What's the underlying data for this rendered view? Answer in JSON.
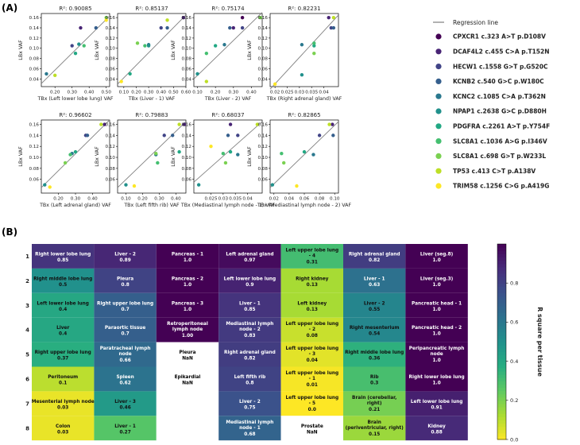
{
  "panel_labels": {
    "a": "(A)",
    "b": "(B)"
  },
  "legend": {
    "regression_label": "Regression line",
    "entries": [
      {
        "label": "CPXCR1 c.323 A>T p.D108V",
        "color": "#440154"
      },
      {
        "label": "DCAF4L2 c.455 C>A p.T152N",
        "color": "#482475"
      },
      {
        "label": "HECW1 c.1558 G>T p.G520C",
        "color": "#414487"
      },
      {
        "label": "KCNB2 c.540 G>C p.W180C",
        "color": "#355f8d"
      },
      {
        "label": "KCNC2 c.1085 C>A p.T362N",
        "color": "#2a788e"
      },
      {
        "label": "NPAP1 c.2638 G>C p.D880H",
        "color": "#21918c"
      },
      {
        "label": "PDGFRA c.2261 A>T p.Y754F",
        "color": "#22a884"
      },
      {
        "label": "SLC8A1 c.1036 A>G p.I346V",
        "color": "#44bf70"
      },
      {
        "label": "SLC8A1 c.698 G>T p.W233L",
        "color": "#7ad151"
      },
      {
        "label": "TP53 c.413 C>T p.A138V",
        "color": "#bddf26"
      },
      {
        "label": "TRIM58 c.1256 C>G p.A419G",
        "color": "#fde725"
      }
    ]
  },
  "chart_data": [
    {
      "type": "scatter",
      "title": "R²: 0.90085",
      "xlabel": "TBx (Left lower lobe lung) VAF",
      "ylabel": "LBx VAF",
      "xlim": [
        0.12,
        0.52
      ],
      "ylim": [
        0.025,
        0.168
      ],
      "xticks": [
        0.2,
        0.3,
        0.4,
        0.5
      ],
      "yticks": [
        0.04,
        0.06,
        0.08,
        0.1,
        0.12,
        0.14,
        0.16
      ],
      "regression": [
        [
          0.12,
          0.031
        ],
        [
          0.52,
          0.163
        ]
      ],
      "points": [
        {
          "x": 0.35,
          "y": 0.14,
          "c": 1
        },
        {
          "x": 0.44,
          "y": 0.14,
          "c": 3
        },
        {
          "x": 0.3,
          "y": 0.105,
          "c": 2
        },
        {
          "x": 0.34,
          "y": 0.108,
          "c": 5
        },
        {
          "x": 0.15,
          "y": 0.05,
          "c": 4
        },
        {
          "x": 0.32,
          "y": 0.09,
          "c": 6
        },
        {
          "x": 0.37,
          "y": 0.105,
          "c": 7
        },
        {
          "x": 0.5,
          "y": 0.16,
          "c": 8
        },
        {
          "x": 0.2,
          "y": 0.047,
          "c": 9
        },
        {
          "x": 0.5,
          "y": 0.155,
          "c": 10
        }
      ]
    },
    {
      "type": "scatter",
      "title": "R²: 0.85137",
      "xlabel": "TBx (Liver - 1) VAF",
      "ylabel": "LBx VAF",
      "xlim": [
        0.05,
        0.6
      ],
      "ylim": [
        0.025,
        0.168
      ],
      "xticks": [
        0.1,
        0.2,
        0.3,
        0.4,
        0.5,
        0.6
      ],
      "yticks": [
        0.04,
        0.06,
        0.08,
        0.1,
        0.12,
        0.14,
        0.16
      ],
      "regression": [
        [
          0.05,
          0.03
        ],
        [
          0.6,
          0.165
        ]
      ],
      "points": [
        {
          "x": 0.58,
          "y": 0.16,
          "c": 1
        },
        {
          "x": 0.4,
          "y": 0.14,
          "c": 2
        },
        {
          "x": 0.45,
          "y": 0.14,
          "c": 3
        },
        {
          "x": 0.3,
          "y": 0.107,
          "c": 4
        },
        {
          "x": 0.3,
          "y": 0.105,
          "c": 5
        },
        {
          "x": 0.15,
          "y": 0.05,
          "c": 6
        },
        {
          "x": 0.27,
          "y": 0.105,
          "c": 7
        },
        {
          "x": 0.21,
          "y": 0.11,
          "c": 8
        },
        {
          "x": 0.45,
          "y": 0.155,
          "c": 9
        },
        {
          "x": 0.08,
          "y": 0.035,
          "c": 10
        }
      ]
    },
    {
      "type": "scatter",
      "title": "R²: 0.75174",
      "xlabel": "TBx (Liver - 2) VAF",
      "ylabel": "LBx VAF",
      "xlim": [
        0.08,
        0.46
      ],
      "ylim": [
        0.025,
        0.168
      ],
      "xticks": [
        0.1,
        0.2,
        0.3,
        0.4
      ],
      "yticks": [
        0.04,
        0.06,
        0.08,
        0.1,
        0.12,
        0.14,
        0.16
      ],
      "regression": [
        [
          0.08,
          0.04
        ],
        [
          0.46,
          0.17
        ]
      ],
      "points": [
        {
          "x": 0.35,
          "y": 0.16,
          "c": 0
        },
        {
          "x": 0.3,
          "y": 0.14,
          "c": 1
        },
        {
          "x": 0.35,
          "y": 0.14,
          "c": 2
        },
        {
          "x": 0.28,
          "y": 0.14,
          "c": 3
        },
        {
          "x": 0.25,
          "y": 0.107,
          "c": 4
        },
        {
          "x": 0.1,
          "y": 0.05,
          "c": 5
        },
        {
          "x": 0.2,
          "y": 0.105,
          "c": 6
        },
        {
          "x": 0.15,
          "y": 0.09,
          "c": 7
        },
        {
          "x": 0.45,
          "y": 0.16,
          "c": 8
        },
        {
          "x": 0.15,
          "y": 0.035,
          "c": 9
        }
      ]
    },
    {
      "type": "scatter",
      "title": "R²: 0.82231",
      "xlabel": "TBx (Right adrenal gland) VAF",
      "ylabel": "LBx VAF",
      "xlim": [
        0.018,
        0.046
      ],
      "ylim": [
        0.025,
        0.168
      ],
      "xticks": [
        0.02,
        0.025,
        0.03,
        0.035,
        0.04
      ],
      "yticks": [
        0.04,
        0.06,
        0.08,
        0.1,
        0.12,
        0.14,
        0.16
      ],
      "regression": [
        [
          0.018,
          0.02
        ],
        [
          0.046,
          0.165
        ]
      ],
      "points": [
        {
          "x": 0.042,
          "y": 0.16,
          "c": 1
        },
        {
          "x": 0.043,
          "y": 0.14,
          "c": 2
        },
        {
          "x": 0.044,
          "y": 0.14,
          "c": 3
        },
        {
          "x": 0.031,
          "y": 0.107,
          "c": 4
        },
        {
          "x": 0.031,
          "y": 0.048,
          "c": 5
        },
        {
          "x": 0.036,
          "y": 0.105,
          "c": 6
        },
        {
          "x": 0.036,
          "y": 0.11,
          "c": 7
        },
        {
          "x": 0.036,
          "y": 0.09,
          "c": 8
        },
        {
          "x": 0.044,
          "y": 0.16,
          "c": 9
        },
        {
          "x": 0.02,
          "y": 0.03,
          "c": 10
        }
      ]
    },
    {
      "type": "scatter",
      "title": "R²: 0.96602",
      "xlabel": "TBx (Left adrenal gland) VAF",
      "ylabel": "LBx VAF",
      "xlim": [
        0.1,
        0.5
      ],
      "ylim": [
        0.035,
        0.168
      ],
      "xticks": [
        0.2,
        0.3,
        0.4
      ],
      "yticks": [
        0.06,
        0.08,
        0.1,
        0.12,
        0.14,
        0.16
      ],
      "regression": [
        [
          0.1,
          0.045
        ],
        [
          0.5,
          0.168
        ]
      ],
      "points": [
        {
          "x": 0.47,
          "y": 0.16,
          "c": 1
        },
        {
          "x": 0.36,
          "y": 0.14,
          "c": 2
        },
        {
          "x": 0.37,
          "y": 0.14,
          "c": 3
        },
        {
          "x": 0.28,
          "y": 0.107,
          "c": 4
        },
        {
          "x": 0.12,
          "y": 0.05,
          "c": 5
        },
        {
          "x": 0.3,
          "y": 0.11,
          "c": 6
        },
        {
          "x": 0.27,
          "y": 0.105,
          "c": 7
        },
        {
          "x": 0.24,
          "y": 0.09,
          "c": 8
        },
        {
          "x": 0.45,
          "y": 0.16,
          "c": 9
        },
        {
          "x": 0.15,
          "y": 0.046,
          "c": 10
        }
      ]
    },
    {
      "type": "scatter",
      "title": "R²: 0.79883",
      "xlabel": "TBx (Left fifth rib) VAF",
      "ylabel": "LBx VAF",
      "xlim": [
        0.05,
        0.46
      ],
      "ylim": [
        0.035,
        0.168
      ],
      "xticks": [
        0.1,
        0.2,
        0.3,
        0.4
      ],
      "yticks": [
        0.06,
        0.08,
        0.1,
        0.12,
        0.14,
        0.16
      ],
      "regression": [
        [
          0.05,
          0.045
        ],
        [
          0.46,
          0.165
        ]
      ],
      "points": [
        {
          "x": 0.45,
          "y": 0.16,
          "c": 1
        },
        {
          "x": 0.33,
          "y": 0.14,
          "c": 2
        },
        {
          "x": 0.38,
          "y": 0.14,
          "c": 3
        },
        {
          "x": 0.28,
          "y": 0.105,
          "c": 4
        },
        {
          "x": 0.1,
          "y": 0.05,
          "c": 5
        },
        {
          "x": 0.42,
          "y": 0.11,
          "c": 6
        },
        {
          "x": 0.29,
          "y": 0.09,
          "c": 7
        },
        {
          "x": 0.28,
          "y": 0.107,
          "c": 8
        },
        {
          "x": 0.42,
          "y": 0.16,
          "c": 9
        },
        {
          "x": 0.15,
          "y": 0.048,
          "c": 10
        }
      ]
    },
    {
      "type": "scatter",
      "title": "R²: 0.68037",
      "xlabel": "TBx (Mediastinal lymph node - 1) VAF",
      "ylabel": "LBx VAF",
      "xlim": [
        0.018,
        0.046
      ],
      "ylim": [
        0.035,
        0.168
      ],
      "xticks": [
        0.025,
        0.03,
        0.035,
        0.04
      ],
      "yticks": [
        0.06,
        0.08,
        0.1,
        0.12,
        0.14,
        0.16
      ],
      "regression": [
        [
          0.018,
          0.055
        ],
        [
          0.046,
          0.165
        ]
      ],
      "points": [
        {
          "x": 0.033,
          "y": 0.16,
          "c": 1
        },
        {
          "x": 0.036,
          "y": 0.14,
          "c": 2
        },
        {
          "x": 0.032,
          "y": 0.14,
          "c": 3
        },
        {
          "x": 0.036,
          "y": 0.105,
          "c": 4
        },
        {
          "x": 0.02,
          "y": 0.05,
          "c": 5
        },
        {
          "x": 0.033,
          "y": 0.11,
          "c": 6
        },
        {
          "x": 0.03,
          "y": 0.107,
          "c": 7
        },
        {
          "x": 0.031,
          "y": 0.09,
          "c": 8
        },
        {
          "x": 0.044,
          "y": 0.16,
          "c": 9
        },
        {
          "x": 0.025,
          "y": 0.12,
          "c": 10
        }
      ]
    },
    {
      "type": "scatter",
      "title": "R²: 0.82865",
      "xlabel": "TBx (Mediastinal lymph node - 2) VAF",
      "ylabel": "LBx VAF",
      "xlim": [
        0.015,
        0.105
      ],
      "ylim": [
        0.035,
        0.168
      ],
      "xticks": [
        0.02,
        0.04,
        0.06,
        0.08,
        0.1
      ],
      "yticks": [
        0.06,
        0.08,
        0.1,
        0.12,
        0.14,
        0.16
      ],
      "regression": [
        [
          0.015,
          0.045
        ],
        [
          0.105,
          0.165
        ]
      ],
      "points": [
        {
          "x": 0.097,
          "y": 0.16,
          "c": 1
        },
        {
          "x": 0.08,
          "y": 0.14,
          "c": 2
        },
        {
          "x": 0.098,
          "y": 0.14,
          "c": 3
        },
        {
          "x": 0.072,
          "y": 0.105,
          "c": 4
        },
        {
          "x": 0.018,
          "y": 0.05,
          "c": 5
        },
        {
          "x": 0.06,
          "y": 0.11,
          "c": 6
        },
        {
          "x": 0.03,
          "y": 0.107,
          "c": 7
        },
        {
          "x": 0.033,
          "y": 0.09,
          "c": 8
        },
        {
          "x": 0.093,
          "y": 0.16,
          "c": 9
        },
        {
          "x": 0.05,
          "y": 0.048,
          "c": 10
        }
      ]
    },
    {
      "type": "heatmap",
      "row_labels": [
        "1",
        "2",
        "3",
        "4",
        "5",
        "6",
        "7",
        "8"
      ],
      "colorbar_label": "R square per tissue",
      "colorbar_ticks": [
        0.0,
        0.2,
        0.4,
        0.6,
        0.8
      ],
      "vmin": 0.0,
      "vmax": 1.0,
      "columns": [
        [
          {
            "name": "Right lower lobe lung",
            "value": "0.85",
            "v": 0.85
          },
          {
            "name": "Right middle lobe lung",
            "value": "0.5",
            "v": 0.5
          },
          {
            "name": "Left lower lobe lung",
            "value": "0.4",
            "v": 0.4
          },
          {
            "name": "Liver",
            "value": "0.4",
            "v": 0.4
          },
          {
            "name": "Right upper lobe lung",
            "value": "0.37",
            "v": 0.37
          },
          {
            "name": "Peritoneum",
            "value": "0.1",
            "v": 0.1
          },
          {
            "name": "Mesenterial lymph node",
            "value": "0.03",
            "v": 0.03
          },
          {
            "name": "Colon",
            "value": "0.03",
            "v": 0.03
          }
        ],
        [
          {
            "name": "Liver - 2",
            "value": "0.89",
            "v": 0.89
          },
          {
            "name": "Pleura",
            "value": "0.8",
            "v": 0.8
          },
          {
            "name": "Right upper lobe lung",
            "value": "0.7",
            "v": 0.7
          },
          {
            "name": "Paraortic tissue",
            "value": "0.7",
            "v": 0.7
          },
          {
            "name": "Paratracheal lymph node",
            "value": "0.66",
            "v": 0.66
          },
          {
            "name": "Spleen",
            "value": "0.62",
            "v": 0.62
          },
          {
            "name": "Liver - 3",
            "value": "0.46",
            "v": 0.46
          },
          {
            "name": "Liver - 1",
            "value": "0.27",
            "v": 0.27
          }
        ],
        [
          {
            "name": "Pancreas - 1",
            "value": "1.0",
            "v": 1.0
          },
          {
            "name": "Pancreas - 2",
            "value": "1.0",
            "v": 1.0
          },
          {
            "name": "Pancreas - 3",
            "value": "1.0",
            "v": 1.0
          },
          {
            "name": "Retroperitoneal lymph node",
            "value": "1.00",
            "v": 1.0
          },
          {
            "name": "Pleura",
            "value": "NaN",
            "v": null
          },
          {
            "name": "Epikardial",
            "value": "NaN",
            "v": null
          },
          {
            "name": "",
            "value": "",
            "v": null
          },
          {
            "name": "",
            "value": "",
            "v": null
          }
        ],
        [
          {
            "name": "Left adrenal gland",
            "value": "0.97",
            "v": 0.97
          },
          {
            "name": "Left lower lobe lung",
            "value": "0.9",
            "v": 0.9
          },
          {
            "name": "Liver - 1",
            "value": "0.85",
            "v": 0.85
          },
          {
            "name": "Mediastinal lymph node - 2",
            "value": "0.83",
            "v": 0.83
          },
          {
            "name": "Right adrenal gland",
            "value": "0.82",
            "v": 0.82
          },
          {
            "name": "Left fifth rib",
            "value": "0.8",
            "v": 0.8
          },
          {
            "name": "Liver - 2",
            "value": "0.75",
            "v": 0.75
          },
          {
            "name": "Mediastinal lymph node - 1",
            "value": "0.68",
            "v": 0.68
          }
        ],
        [
          {
            "name": "Left upper lobe lung - 4",
            "value": "0.31",
            "v": 0.31
          },
          {
            "name": "Right kidney",
            "value": "0.13",
            "v": 0.13
          },
          {
            "name": "Left kidney",
            "value": "0.13",
            "v": 0.13
          },
          {
            "name": "Left upper lobe lung - 2",
            "value": "0.08",
            "v": 0.08
          },
          {
            "name": "Left upper lobe lung - 3",
            "value": "0.04",
            "v": 0.04
          },
          {
            "name": "Left upper lobe lung - 1",
            "value": "0.01",
            "v": 0.01
          },
          {
            "name": "Left upper lobe lung - 5",
            "value": "0.0",
            "v": 0.0
          },
          {
            "name": "Prostate",
            "value": "NaN",
            "v": null
          }
        ],
        [
          {
            "name": "Right adrenal gland",
            "value": "0.82",
            "v": 0.82
          },
          {
            "name": "Liver - 1",
            "value": "0.63",
            "v": 0.63
          },
          {
            "name": "Liver - 2",
            "value": "0.55",
            "v": 0.55
          },
          {
            "name": "Right mesenterium",
            "value": "0.54",
            "v": 0.54
          },
          {
            "name": "Right middle lobe lung",
            "value": "0.36",
            "v": 0.36
          },
          {
            "name": "Rib",
            "value": "0.3",
            "v": 0.3
          },
          {
            "name": "Brain (cerebellar, right)",
            "value": "0.21",
            "v": 0.21
          },
          {
            "name": "Brain (periventricular, right)",
            "value": "0.15",
            "v": 0.15
          }
        ],
        [
          {
            "name": "Liver (seg.8)",
            "value": "1.0",
            "v": 1.0
          },
          {
            "name": "Liver (seg.3)",
            "value": "1.0",
            "v": 1.0
          },
          {
            "name": "Pancreatic head - 1",
            "value": "1.0",
            "v": 1.0
          },
          {
            "name": "Pancreatic head - 2",
            "value": "1.0",
            "v": 1.0
          },
          {
            "name": "Peripancreatic lymph node",
            "value": "1.0",
            "v": 1.0
          },
          {
            "name": "Right lower lobe lung",
            "value": "1.0",
            "v": 1.0
          },
          {
            "name": "Left lower lobe lung",
            "value": "0.91",
            "v": 0.91
          },
          {
            "name": "Kidney",
            "value": "0.88",
            "v": 0.88
          }
        ]
      ]
    }
  ]
}
